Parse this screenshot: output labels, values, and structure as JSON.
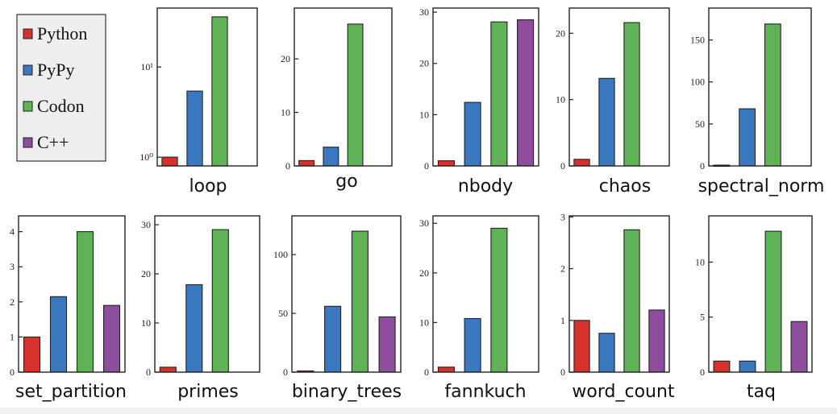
{
  "colors": {
    "Python": "#d7312c",
    "PyPy": "#3a78bf",
    "Codon": "#5fb356",
    "C++": "#8e4d9c",
    "frame": "#222222",
    "legend_bg": "#eeeeee"
  },
  "legend": {
    "items": [
      "Python",
      "PyPy",
      "Codon",
      "C++"
    ],
    "placement": "top-left"
  },
  "chart_data": [
    {
      "type": "bar",
      "title": "loop",
      "scale": "log",
      "ylim": [
        0.8,
        45
      ],
      "ticks": [
        1,
        10
      ],
      "tick_labels": [
        "10⁰",
        "10¹"
      ],
      "series": [
        {
          "name": "Python",
          "value": 1
        },
        {
          "name": "PyPy",
          "value": 5.4
        },
        {
          "name": "Codon",
          "value": 36
        },
        {
          "name": "C++",
          "value": null
        }
      ]
    },
    {
      "type": "bar",
      "title": "go",
      "scale": "linear",
      "ylim": [
        0,
        29.5
      ],
      "ticks": [
        0,
        10,
        20
      ],
      "tick_labels": [
        "0",
        "10",
        "20"
      ],
      "series": [
        {
          "name": "Python",
          "value": 1
        },
        {
          "name": "PyPy",
          "value": 3.5
        },
        {
          "name": "Codon",
          "value": 26.5
        },
        {
          "name": "C++",
          "value": null
        }
      ]
    },
    {
      "type": "bar",
      "title": "nbody",
      "scale": "linear",
      "ylim": [
        0,
        30.8
      ],
      "ticks": [
        0,
        10,
        20,
        30
      ],
      "tick_labels": [
        "0",
        "10",
        "20",
        "30"
      ],
      "series": [
        {
          "name": "Python",
          "value": 1
        },
        {
          "name": "PyPy",
          "value": 12.4
        },
        {
          "name": "Codon",
          "value": 28.1
        },
        {
          "name": "C++",
          "value": 28.5
        }
      ]
    },
    {
      "type": "bar",
      "title": "chaos",
      "scale": "linear",
      "ylim": [
        0,
        23.8
      ],
      "ticks": [
        0,
        10,
        20
      ],
      "tick_labels": [
        "0",
        "10",
        "20"
      ],
      "series": [
        {
          "name": "Python",
          "value": 1
        },
        {
          "name": "PyPy",
          "value": 13.2
        },
        {
          "name": "Codon",
          "value": 21.6
        },
        {
          "name": "C++",
          "value": null
        }
      ]
    },
    {
      "type": "bar",
      "title": "spectral_norm",
      "scale": "linear",
      "ylim": [
        0,
        188
      ],
      "ticks": [
        0,
        50,
        100,
        150
      ],
      "tick_labels": [
        "0",
        "50",
        "100",
        "150"
      ],
      "series": [
        {
          "name": "Python",
          "value": 1
        },
        {
          "name": "PyPy",
          "value": 68
        },
        {
          "name": "Codon",
          "value": 169
        },
        {
          "name": "C++",
          "value": null
        }
      ]
    },
    {
      "type": "bar",
      "title": "set_partition",
      "scale": "linear",
      "ylim": [
        0,
        4.45
      ],
      "ticks": [
        0,
        1,
        2,
        3,
        4
      ],
      "tick_labels": [
        "0",
        "1",
        "2",
        "3",
        "4"
      ],
      "series": [
        {
          "name": "Python",
          "value": 1
        },
        {
          "name": "PyPy",
          "value": 2.15
        },
        {
          "name": "Codon",
          "value": 4
        },
        {
          "name": "C++",
          "value": 1.9
        }
      ]
    },
    {
      "type": "bar",
      "title": "primes",
      "scale": "linear",
      "ylim": [
        0,
        31.8
      ],
      "ticks": [
        0,
        10,
        20,
        30
      ],
      "tick_labels": [
        "0",
        "10",
        "20",
        "30"
      ],
      "series": [
        {
          "name": "Python",
          "value": 1
        },
        {
          "name": "PyPy",
          "value": 17.8
        },
        {
          "name": "Codon",
          "value": 29
        },
        {
          "name": "C++",
          "value": null
        }
      ]
    },
    {
      "type": "bar",
      "title": "binary_trees",
      "scale": "linear",
      "ylim": [
        0,
        133
      ],
      "ticks": [
        0,
        50,
        100
      ],
      "tick_labels": [
        "0",
        "50",
        "100"
      ],
      "series": [
        {
          "name": "Python",
          "value": 1
        },
        {
          "name": "PyPy",
          "value": 56
        },
        {
          "name": "Codon",
          "value": 120
        },
        {
          "name": "C++",
          "value": 47
        }
      ]
    },
    {
      "type": "bar",
      "title": "fannkuch",
      "scale": "linear",
      "ylim": [
        0,
        31.5
      ],
      "ticks": [
        0,
        10,
        20,
        30
      ],
      "tick_labels": [
        "0",
        "10",
        "20",
        "30"
      ],
      "series": [
        {
          "name": "Python",
          "value": 1
        },
        {
          "name": "PyPy",
          "value": 10.8
        },
        {
          "name": "Codon",
          "value": 29
        },
        {
          "name": "C++",
          "value": null
        }
      ]
    },
    {
      "type": "bar",
      "title": "word_count",
      "scale": "linear",
      "ylim": [
        0,
        3.02
      ],
      "ticks": [
        0,
        1,
        2,
        3
      ],
      "tick_labels": [
        "0",
        "1",
        "2",
        "3"
      ],
      "series": [
        {
          "name": "Python",
          "value": 1
        },
        {
          "name": "PyPy",
          "value": 0.75
        },
        {
          "name": "Codon",
          "value": 2.75
        },
        {
          "name": "C++",
          "value": 1.2
        }
      ]
    },
    {
      "type": "bar",
      "title": "taq",
      "scale": "linear",
      "ylim": [
        0,
        14.2
      ],
      "ticks": [
        0,
        5,
        10
      ],
      "tick_labels": [
        "0",
        "5",
        "10"
      ],
      "series": [
        {
          "name": "Python",
          "value": 1
        },
        {
          "name": "PyPy",
          "value": 1
        },
        {
          "name": "Codon",
          "value": 12.8
        },
        {
          "name": "C++",
          "value": 4.6
        }
      ]
    }
  ]
}
